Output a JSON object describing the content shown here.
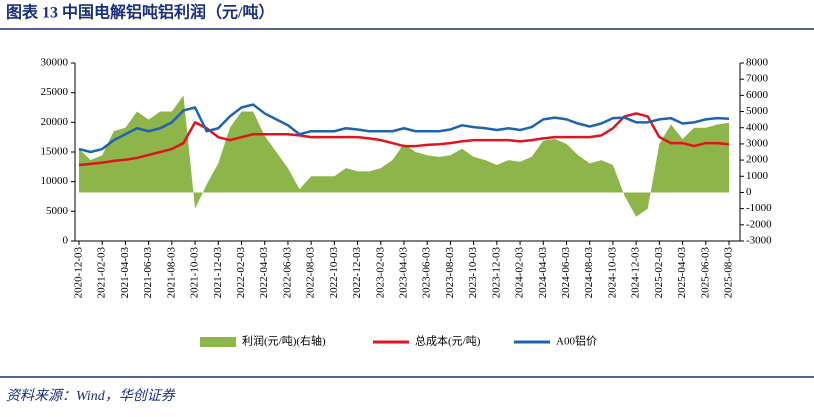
{
  "chart_data": {
    "type": "line",
    "title": "图表 13   中国电解铝吨铝利润（元/吨）",
    "source": "资料来源：Wind，华创证券",
    "categories": [
      "2020-12-03",
      null,
      "2021-02-03",
      null,
      "2021-04-03",
      null,
      "2021-06-03",
      null,
      "2021-08-03",
      null,
      "2021-10-03",
      null,
      "2021-12-03",
      null,
      "2022-02-03",
      null,
      "2022-04-03",
      null,
      "2022-06-03",
      null,
      "2022-08-03",
      null,
      "2022-10-03",
      null,
      "2022-12-03",
      null,
      "2023-02-03",
      null,
      "2023-04-03",
      null,
      "2023-06-03",
      null,
      "2023-08-03",
      null,
      "2023-10-03",
      null,
      "2023-12-03",
      null,
      "2024-02-03",
      null,
      "2024-04-03",
      null,
      "2024-06-03",
      null,
      "2024-08-03",
      null,
      "2024-10-03",
      null,
      "2024-12-03",
      null,
      "2025-02-03",
      null,
      "2025-04-03",
      null,
      "2025-06-03",
      null,
      "2025-08-03"
    ],
    "series": [
      {
        "name": "利润(元/吨)(右轴)",
        "type": "area",
        "axis": "y2",
        "color": "#8db54a",
        "values": [
          2700,
          2000,
          2300,
          3800,
          4000,
          5000,
          4500,
          5000,
          5000,
          6000,
          -1000,
          500,
          1800,
          4000,
          5000,
          5000,
          3500,
          2500,
          1500,
          200,
          1000,
          1000,
          1000,
          1500,
          1300,
          1300,
          1500,
          2000,
          3000,
          2500,
          2300,
          2200,
          2300,
          2700,
          2200,
          2000,
          1700,
          2000,
          1900,
          2200,
          3200,
          3300,
          3000,
          2300,
          1800,
          2000,
          1700,
          -200,
          -1500,
          -1000,
          3000,
          4200,
          3300,
          4000,
          4000,
          4200,
          4300
        ]
      },
      {
        "name": "总成本(元/吨)",
        "type": "line",
        "color": "#e0141e",
        "values": [
          12800,
          13000,
          13200,
          13500,
          13700,
          14000,
          14500,
          15000,
          15500,
          16500,
          20000,
          19000,
          17500,
          17000,
          17500,
          18000,
          18000,
          18000,
          18000,
          17800,
          17500,
          17500,
          17500,
          17500,
          17500,
          17300,
          17000,
          16500,
          16000,
          16000,
          16200,
          16300,
          16500,
          16800,
          17000,
          17000,
          17000,
          17000,
          16800,
          17000,
          17300,
          17500,
          17500,
          17500,
          17500,
          17800,
          19000,
          21000,
          21500,
          21000,
          17500,
          16500,
          16500,
          16000,
          16500,
          16500,
          16300
        ]
      },
      {
        "name": "A00铝价",
        "type": "line",
        "color": "#1f63b0",
        "values": [
          15500,
          15000,
          15500,
          17000,
          18000,
          19000,
          18500,
          19000,
          20000,
          22000,
          22500,
          18500,
          19000,
          21000,
          22500,
          23000,
          21500,
          20500,
          19500,
          18000,
          18500,
          18500,
          18500,
          19000,
          18800,
          18500,
          18500,
          18500,
          19000,
          18500,
          18500,
          18500,
          18800,
          19500,
          19200,
          19000,
          18700,
          19000,
          18700,
          19200,
          20500,
          20800,
          20500,
          19800,
          19300,
          19800,
          20700,
          20800,
          20000,
          20000,
          20500,
          20700,
          19800,
          20000,
          20500,
          20700,
          20600
        ]
      }
    ],
    "ylim": [
      0,
      30000
    ],
    "yticks": [
      0,
      5000,
      10000,
      15000,
      20000,
      25000,
      30000
    ],
    "y2lim": [
      -3000,
      8000
    ],
    "y2ticks": [
      -3000,
      -2000,
      -1000,
      0,
      1000,
      2000,
      3000,
      4000,
      5000,
      6000,
      7000,
      8000
    ],
    "legend": "bottom"
  }
}
